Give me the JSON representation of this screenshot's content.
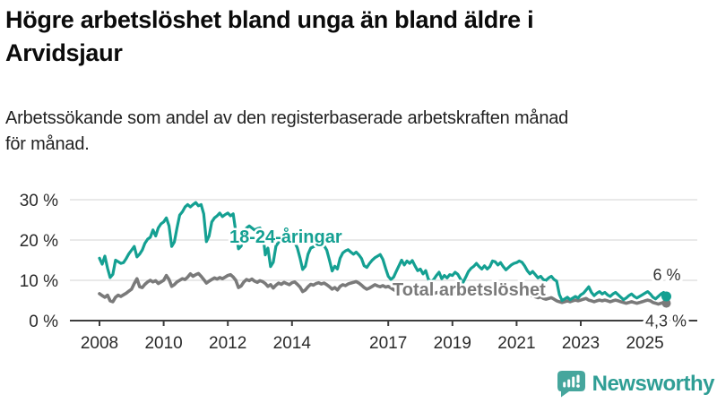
{
  "header": {
    "title_line1": "Högre arbetslöshet bland unga än bland äldre i",
    "title_line2": "Arvidsjaur",
    "subtitle_line1": "Arbetssökande som andel av den registerbaserade arbetskraften månad",
    "subtitle_line2": "för månad."
  },
  "branding": {
    "name": "Newsworthy",
    "logo_icon": "bar-chart-speech-bubble",
    "icon_color": "#46a69d",
    "text_color": "#2f9e95"
  },
  "chart_data": {
    "type": "line",
    "title": "Högre arbetslöshet bland unga än bland äldre i Arvidsjaur",
    "subtitle": "Arbetssökande som andel av den registerbaserade arbetskraften månad för månad.",
    "unit": "%",
    "x_start": "2008-01",
    "x_end": "2025-09",
    "frequency": "monthly",
    "x_axis": {
      "tick_years": [
        2008,
        2010,
        2012,
        2014,
        2017,
        2019,
        2021,
        2023,
        2025
      ]
    },
    "y_axis": {
      "ticks": [
        0,
        10,
        20,
        30
      ],
      "tick_suffix": " %",
      "range": [
        0,
        32
      ],
      "gridlines": true
    },
    "legend_position": "inline-labels",
    "series": [
      {
        "name": "Total arbetslöshet",
        "color": "#7a7a7a",
        "end_label": "4,3 %",
        "end_value": 4.3,
        "values": [
          6.7,
          6.2,
          5.8,
          6.3,
          4.9,
          4.7,
          5.8,
          6.3,
          6.0,
          6.4,
          6.8,
          7.3,
          7.8,
          9.2,
          10.4,
          8.4,
          8.2,
          9.0,
          9.6,
          10.0,
          9.6,
          9.9,
          9.2,
          9.6,
          10.0,
          11.2,
          10.2,
          8.5,
          8.9,
          9.6,
          10.0,
          10.4,
          10.2,
          10.8,
          11.6,
          11.0,
          11.4,
          11.7,
          11.0,
          10.2,
          9.3,
          9.8,
          10.2,
          10.6,
          10.3,
          10.7,
          10.4,
          10.8,
          11.2,
          11.4,
          10.8,
          10.0,
          8.2,
          8.6,
          9.6,
          10.2,
          9.9,
          10.3,
          9.8,
          9.5,
          9.9,
          9.7,
          9.2,
          8.5,
          8.9,
          8.1,
          8.8,
          9.3,
          9.0,
          9.5,
          9.2,
          8.9,
          9.4,
          9.6,
          9.0,
          8.3,
          7.2,
          7.6,
          8.4,
          9.0,
          8.8,
          9.2,
          9.4,
          9.1,
          9.3,
          8.9,
          8.4,
          7.8,
          8.2,
          7.6,
          8.5,
          8.9,
          8.7,
          9.1,
          9.3,
          9.5,
          9.7,
          9.3,
          8.8,
          8.2,
          7.8,
          8.1,
          8.5,
          8.9,
          8.6,
          8.4,
          8.7,
          8.3,
          8.5,
          8.1,
          7.7,
          7.3,
          7.1,
          7.5,
          7.9,
          8.1,
          7.9,
          7.7,
          7.5,
          7.3,
          7.5,
          7.1,
          6.9,
          6.5,
          6.3,
          6.7,
          6.9,
          7.1,
          6.7,
          6.9,
          6.5,
          6.7,
          6.9,
          6.7,
          6.5,
          6.3,
          6.1,
          6.5,
          6.9,
          7.1,
          6.9,
          7.3,
          7.1,
          6.9,
          7.1,
          6.9,
          7.3,
          7.9,
          8.1,
          7.7,
          7.9,
          7.5,
          7.1,
          7.3,
          7.1,
          6.9,
          7.1,
          7.3,
          7.1,
          6.7,
          6.3,
          6.1,
          6.3,
          5.9,
          5.7,
          5.9,
          5.5,
          5.3,
          5.5,
          5.7,
          5.3,
          4.9,
          4.7,
          4.5,
          4.7,
          4.9,
          4.7,
          4.9,
          5.1,
          4.9,
          5.1,
          5.3,
          5.5,
          5.1,
          4.9,
          4.7,
          4.9,
          5.1,
          4.9,
          5.1,
          4.9,
          4.7,
          4.9,
          5.1,
          4.9,
          4.7,
          4.5,
          4.3,
          4.5,
          4.7,
          4.5,
          4.3,
          4.5,
          4.7,
          4.9,
          5.1,
          4.9,
          4.5,
          4.3,
          4.1,
          4.3,
          4.5,
          4.3
        ]
      },
      {
        "name": "18-24-åringar",
        "color": "#14a092",
        "end_label": "6 %",
        "end_value": 6.0,
        "values": [
          15.5,
          14.0,
          16.0,
          13.0,
          10.7,
          11.5,
          15.0,
          14.6,
          14.2,
          14.4,
          15.4,
          16.6,
          17.5,
          18.4,
          15.8,
          16.5,
          17.5,
          19.2,
          20.2,
          20.7,
          22.5,
          21.0,
          23.0,
          24.0,
          24.5,
          25.5,
          23.5,
          18.4,
          19.5,
          23.0,
          26.2,
          27.0,
          28.2,
          28.8,
          28.2,
          28.8,
          29.3,
          28.5,
          28.8,
          26.5,
          19.6,
          21.0,
          24.5,
          25.5,
          26.0,
          26.7,
          25.8,
          26.3,
          26.7,
          26.0,
          26.5,
          22.0,
          17.8,
          18.5,
          21.5,
          23.0,
          23.5,
          23.0,
          22.5,
          22.8,
          23.0,
          22.0,
          16.3,
          18.0,
          13.4,
          14.5,
          18.5,
          19.5,
          20.0,
          20.3,
          19.8,
          20.0,
          20.2,
          19.5,
          18.0,
          15.5,
          12.7,
          13.5,
          16.5,
          18.0,
          18.3,
          18.6,
          18.8,
          18.4,
          18.6,
          17.5,
          15.0,
          12.3,
          13.5,
          12.8,
          15.5,
          16.8,
          17.3,
          17.6,
          17.0,
          16.5,
          17.0,
          16.3,
          15.4,
          13.6,
          13.2,
          14.2,
          15.0,
          15.6,
          16.0,
          16.4,
          15.2,
          13.0,
          11.0,
          10.2,
          10.8,
          12.2,
          13.6,
          15.0,
          13.8,
          14.8,
          14.2,
          14.9,
          13.6,
          12.4,
          12.8,
          11.6,
          12.4,
          10.3,
          9.6,
          10.2,
          11.2,
          12.0,
          10.4,
          11.2,
          10.6,
          11.4,
          11.2,
          12.0,
          11.5,
          10.3,
          9.5,
          10.8,
          12.2,
          13.0,
          13.5,
          14.2,
          13.4,
          12.8,
          13.6,
          12.8,
          13.4,
          14.8,
          14.6,
          13.8,
          14.4,
          13.4,
          12.6,
          13.2,
          13.8,
          14.2,
          14.4,
          14.8,
          14.5,
          13.6,
          12.4,
          11.6,
          12.2,
          11.4,
          10.6,
          11.0,
          10.2,
          10.0,
          10.6,
          11.0,
          10.2,
          9.8,
          6.5,
          5.0,
          5.4,
          5.8,
          5.2,
          5.6,
          6.0,
          5.6,
          6.4,
          6.8,
          7.6,
          8.4,
          7.0,
          6.2,
          6.8,
          7.2,
          6.6,
          7.0,
          6.4,
          6.0,
          6.6,
          7.0,
          6.4,
          5.8,
          5.2,
          5.6,
          6.2,
          6.6,
          6.0,
          5.6,
          6.0,
          6.4,
          6.8,
          7.2,
          6.6,
          5.8,
          5.4,
          6.0,
          6.6,
          7.0,
          6.0
        ]
      }
    ]
  }
}
